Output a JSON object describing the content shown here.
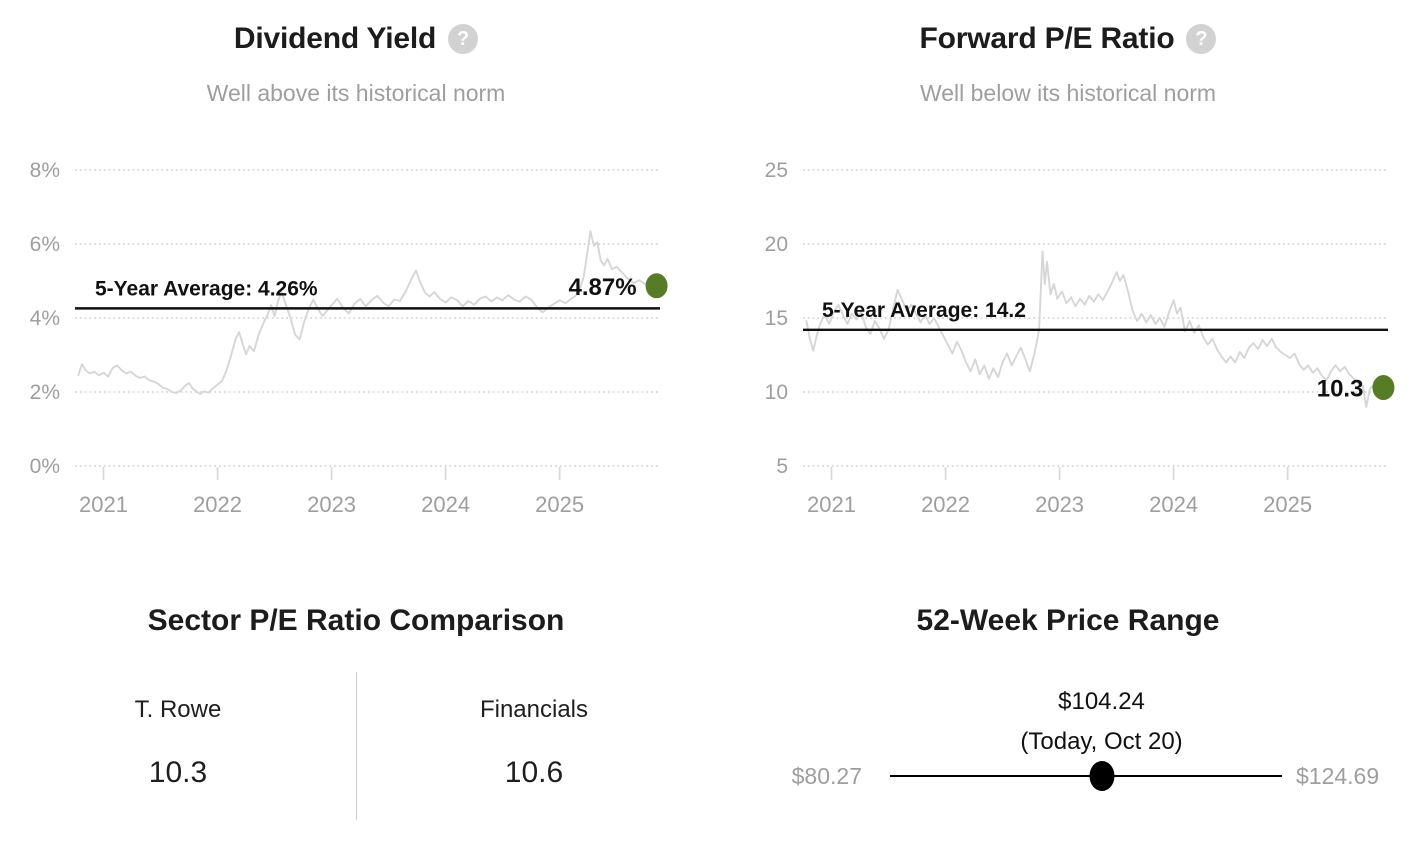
{
  "help_glyph": "?",
  "colors": {
    "accent_green": "#567c26",
    "text_dark": "#1c1c1c",
    "text_muted": "#9e9e9e",
    "grid": "#d8d8d8",
    "series_line": "#d6d6d6",
    "average_line": "#111111",
    "slider_black": "#000000"
  },
  "chart_data": [
    {
      "type": "line",
      "title": "Dividend Yield",
      "subtitle": "Well above its historical norm",
      "average": {
        "label": "5-Year Average: 4.26%",
        "value": 4.26
      },
      "current": {
        "label": "4.87%",
        "value": 4.87
      },
      "y_min": 0,
      "y_max": 8,
      "x_min": 2020.75,
      "x_max": 2025.88,
      "grid": "dotted",
      "y_ticks": [
        {
          "value": 8,
          "label": "8%"
        },
        {
          "value": 6,
          "label": "6%"
        },
        {
          "value": 4,
          "label": "4%"
        },
        {
          "value": 2,
          "label": "2%"
        },
        {
          "value": 0,
          "label": "0%"
        }
      ],
      "x_ticks": [
        {
          "value": 2021,
          "label": "2021"
        },
        {
          "value": 2022,
          "label": "2022"
        },
        {
          "value": 2023,
          "label": "2023"
        },
        {
          "value": 2024,
          "label": "2024"
        },
        {
          "value": 2025,
          "label": "2025"
        }
      ],
      "points": [
        [
          2020.78,
          2.45
        ],
        [
          2020.81,
          2.75
        ],
        [
          2020.84,
          2.6
        ],
        [
          2020.88,
          2.5
        ],
        [
          2020.92,
          2.55
        ],
        [
          2020.96,
          2.45
        ],
        [
          2021.0,
          2.52
        ],
        [
          2021.04,
          2.42
        ],
        [
          2021.08,
          2.65
        ],
        [
          2021.12,
          2.72
        ],
        [
          2021.16,
          2.58
        ],
        [
          2021.2,
          2.5
        ],
        [
          2021.24,
          2.55
        ],
        [
          2021.28,
          2.44
        ],
        [
          2021.32,
          2.38
        ],
        [
          2021.36,
          2.42
        ],
        [
          2021.4,
          2.32
        ],
        [
          2021.44,
          2.28
        ],
        [
          2021.48,
          2.22
        ],
        [
          2021.52,
          2.12
        ],
        [
          2021.56,
          2.08
        ],
        [
          2021.6,
          2.0
        ],
        [
          2021.64,
          1.97
        ],
        [
          2021.68,
          2.05
        ],
        [
          2021.72,
          2.18
        ],
        [
          2021.75,
          2.24
        ],
        [
          2021.78,
          2.1
        ],
        [
          2021.82,
          2.0
        ],
        [
          2021.85,
          1.95
        ],
        [
          2021.88,
          2.02
        ],
        [
          2021.92,
          1.98
        ],
        [
          2021.96,
          2.1
        ],
        [
          2022.0,
          2.2
        ],
        [
          2022.04,
          2.3
        ],
        [
          2022.08,
          2.6
        ],
        [
          2022.12,
          3.0
        ],
        [
          2022.16,
          3.45
        ],
        [
          2022.19,
          3.62
        ],
        [
          2022.22,
          3.3
        ],
        [
          2022.25,
          3.02
        ],
        [
          2022.28,
          3.25
        ],
        [
          2022.32,
          3.1
        ],
        [
          2022.36,
          3.55
        ],
        [
          2022.4,
          3.85
        ],
        [
          2022.44,
          4.1
        ],
        [
          2022.47,
          4.35
        ],
        [
          2022.5,
          4.05
        ],
        [
          2022.53,
          4.45
        ],
        [
          2022.56,
          4.72
        ],
        [
          2022.6,
          4.35
        ],
        [
          2022.64,
          4.0
        ],
        [
          2022.68,
          3.55
        ],
        [
          2022.72,
          3.42
        ],
        [
          2022.76,
          3.9
        ],
        [
          2022.8,
          4.25
        ],
        [
          2022.84,
          4.5
        ],
        [
          2022.88,
          4.25
        ],
        [
          2022.92,
          4.05
        ],
        [
          2022.96,
          4.2
        ],
        [
          2023.0,
          4.35
        ],
        [
          2023.05,
          4.52
        ],
        [
          2023.1,
          4.28
        ],
        [
          2023.15,
          4.12
        ],
        [
          2023.2,
          4.38
        ],
        [
          2023.25,
          4.52
        ],
        [
          2023.3,
          4.32
        ],
        [
          2023.35,
          4.48
        ],
        [
          2023.4,
          4.6
        ],
        [
          2023.45,
          4.42
        ],
        [
          2023.5,
          4.32
        ],
        [
          2023.55,
          4.5
        ],
        [
          2023.6,
          4.46
        ],
        [
          2023.65,
          4.72
        ],
        [
          2023.7,
          5.05
        ],
        [
          2023.74,
          5.28
        ],
        [
          2023.78,
          4.95
        ],
        [
          2023.82,
          4.68
        ],
        [
          2023.86,
          4.58
        ],
        [
          2023.9,
          4.7
        ],
        [
          2023.95,
          4.52
        ],
        [
          2024.0,
          4.42
        ],
        [
          2024.05,
          4.56
        ],
        [
          2024.1,
          4.48
        ],
        [
          2024.15,
          4.32
        ],
        [
          2024.2,
          4.46
        ],
        [
          2024.25,
          4.36
        ],
        [
          2024.3,
          4.52
        ],
        [
          2024.35,
          4.58
        ],
        [
          2024.4,
          4.45
        ],
        [
          2024.45,
          4.55
        ],
        [
          2024.5,
          4.48
        ],
        [
          2024.55,
          4.62
        ],
        [
          2024.6,
          4.5
        ],
        [
          2024.65,
          4.44
        ],
        [
          2024.7,
          4.58
        ],
        [
          2024.75,
          4.5
        ],
        [
          2024.8,
          4.3
        ],
        [
          2024.85,
          4.15
        ],
        [
          2024.9,
          4.28
        ],
        [
          2024.95,
          4.38
        ],
        [
          2025.0,
          4.48
        ],
        [
          2025.05,
          4.4
        ],
        [
          2025.1,
          4.52
        ],
        [
          2025.14,
          4.6
        ],
        [
          2025.18,
          4.82
        ],
        [
          2025.21,
          5.1
        ],
        [
          2025.24,
          5.7
        ],
        [
          2025.27,
          6.35
        ],
        [
          2025.3,
          5.95
        ],
        [
          2025.33,
          6.05
        ],
        [
          2025.36,
          5.55
        ],
        [
          2025.39,
          5.42
        ],
        [
          2025.42,
          5.6
        ],
        [
          2025.46,
          5.32
        ],
        [
          2025.5,
          5.38
        ],
        [
          2025.55,
          5.22
        ],
        [
          2025.6,
          5.05
        ],
        [
          2025.65,
          4.95
        ],
        [
          2025.7,
          5.02
        ],
        [
          2025.75,
          4.92
        ],
        [
          2025.8,
          4.96
        ],
        [
          2025.85,
          4.87
        ]
      ]
    },
    {
      "type": "line",
      "title": "Forward P/E Ratio",
      "subtitle": "Well below its historical norm",
      "average": {
        "label": "5-Year Average: 14.2",
        "value": 14.2
      },
      "current": {
        "label": "10.3",
        "value": 10.3
      },
      "y_min": 5,
      "y_max": 25,
      "x_min": 2020.75,
      "x_max": 2025.88,
      "grid": "dotted",
      "y_ticks": [
        {
          "value": 25,
          "label": "25"
        },
        {
          "value": 20,
          "label": "20"
        },
        {
          "value": 15,
          "label": "15"
        },
        {
          "value": 10,
          "label": "10"
        },
        {
          "value": 5,
          "label": "5"
        }
      ],
      "x_ticks": [
        {
          "value": 2021,
          "label": "2021"
        },
        {
          "value": 2022,
          "label": "2022"
        },
        {
          "value": 2023,
          "label": "2023"
        },
        {
          "value": 2024,
          "label": "2024"
        },
        {
          "value": 2025,
          "label": "2025"
        }
      ],
      "points": [
        [
          2020.78,
          14.8
        ],
        [
          2020.81,
          13.6
        ],
        [
          2020.84,
          12.8
        ],
        [
          2020.87,
          13.8
        ],
        [
          2020.9,
          14.6
        ],
        [
          2020.94,
          15.2
        ],
        [
          2020.98,
          14.6
        ],
        [
          2021.02,
          15.4
        ],
        [
          2021.06,
          15.9
        ],
        [
          2021.1,
          15.2
        ],
        [
          2021.14,
          14.6
        ],
        [
          2021.18,
          15.3
        ],
        [
          2021.22,
          14.9
        ],
        [
          2021.26,
          15.4
        ],
        [
          2021.3,
          14.4
        ],
        [
          2021.34,
          13.9
        ],
        [
          2021.38,
          14.8
        ],
        [
          2021.42,
          14.3
        ],
        [
          2021.46,
          13.6
        ],
        [
          2021.5,
          14.2
        ],
        [
          2021.54,
          15.6
        ],
        [
          2021.58,
          16.9
        ],
        [
          2021.62,
          16.2
        ],
        [
          2021.66,
          15.5
        ],
        [
          2021.7,
          15.9
        ],
        [
          2021.74,
          15.3
        ],
        [
          2021.78,
          14.7
        ],
        [
          2021.82,
          15.2
        ],
        [
          2021.86,
          14.6
        ],
        [
          2021.9,
          15.0
        ],
        [
          2021.94,
          14.4
        ],
        [
          2021.98,
          13.8
        ],
        [
          2022.02,
          13.2
        ],
        [
          2022.06,
          12.6
        ],
        [
          2022.1,
          13.4
        ],
        [
          2022.14,
          12.8
        ],
        [
          2022.18,
          12.0
        ],
        [
          2022.22,
          11.4
        ],
        [
          2022.26,
          12.2
        ],
        [
          2022.3,
          11.2
        ],
        [
          2022.34,
          11.8
        ],
        [
          2022.38,
          10.9
        ],
        [
          2022.42,
          11.6
        ],
        [
          2022.46,
          11.0
        ],
        [
          2022.5,
          12.0
        ],
        [
          2022.54,
          12.6
        ],
        [
          2022.58,
          11.8
        ],
        [
          2022.62,
          12.4
        ],
        [
          2022.66,
          13.0
        ],
        [
          2022.7,
          12.2
        ],
        [
          2022.74,
          11.4
        ],
        [
          2022.78,
          12.6
        ],
        [
          2022.82,
          14.2
        ],
        [
          2022.85,
          19.5
        ],
        [
          2022.87,
          17.3
        ],
        [
          2022.89,
          18.8
        ],
        [
          2022.92,
          16.6
        ],
        [
          2022.95,
          17.3
        ],
        [
          2022.98,
          16.3
        ],
        [
          2023.02,
          16.8
        ],
        [
          2023.06,
          16.0
        ],
        [
          2023.1,
          16.4
        ],
        [
          2023.14,
          15.8
        ],
        [
          2023.18,
          16.3
        ],
        [
          2023.22,
          15.9
        ],
        [
          2023.26,
          16.5
        ],
        [
          2023.3,
          16.1
        ],
        [
          2023.34,
          16.6
        ],
        [
          2023.38,
          16.2
        ],
        [
          2023.42,
          16.8
        ],
        [
          2023.46,
          17.4
        ],
        [
          2023.5,
          18.1
        ],
        [
          2023.53,
          17.5
        ],
        [
          2023.56,
          17.9
        ],
        [
          2023.6,
          16.8
        ],
        [
          2023.64,
          15.5
        ],
        [
          2023.68,
          14.8
        ],
        [
          2023.72,
          15.3
        ],
        [
          2023.76,
          14.7
        ],
        [
          2023.8,
          15.2
        ],
        [
          2023.84,
          14.6
        ],
        [
          2023.88,
          15.0
        ],
        [
          2023.92,
          14.4
        ],
        [
          2023.96,
          15.4
        ],
        [
          2024.0,
          16.2
        ],
        [
          2024.03,
          15.3
        ],
        [
          2024.06,
          15.7
        ],
        [
          2024.1,
          14.1
        ],
        [
          2024.14,
          14.8
        ],
        [
          2024.18,
          14.0
        ],
        [
          2024.22,
          14.5
        ],
        [
          2024.26,
          13.7
        ],
        [
          2024.3,
          13.2
        ],
        [
          2024.34,
          13.6
        ],
        [
          2024.38,
          12.9
        ],
        [
          2024.42,
          12.4
        ],
        [
          2024.46,
          12.0
        ],
        [
          2024.5,
          12.4
        ],
        [
          2024.54,
          12.0
        ],
        [
          2024.58,
          12.7
        ],
        [
          2024.62,
          12.3
        ],
        [
          2024.66,
          13.0
        ],
        [
          2024.7,
          13.3
        ],
        [
          2024.74,
          12.9
        ],
        [
          2024.78,
          13.5
        ],
        [
          2024.82,
          13.1
        ],
        [
          2024.86,
          13.6
        ],
        [
          2024.9,
          13.0
        ],
        [
          2024.94,
          12.7
        ],
        [
          2024.98,
          12.5
        ],
        [
          2025.02,
          12.3
        ],
        [
          2025.06,
          12.6
        ],
        [
          2025.1,
          11.9
        ],
        [
          2025.14,
          11.5
        ],
        [
          2025.18,
          11.8
        ],
        [
          2025.22,
          11.3
        ],
        [
          2025.26,
          11.6
        ],
        [
          2025.3,
          11.1
        ],
        [
          2025.34,
          10.8
        ],
        [
          2025.38,
          11.4
        ],
        [
          2025.42,
          11.8
        ],
        [
          2025.46,
          11.4
        ],
        [
          2025.5,
          11.7
        ],
        [
          2025.54,
          11.2
        ],
        [
          2025.58,
          10.9
        ],
        [
          2025.62,
          10.6
        ],
        [
          2025.66,
          10.4
        ],
        [
          2025.69,
          9.0
        ],
        [
          2025.72,
          10.2
        ],
        [
          2025.76,
          10.5
        ],
        [
          2025.8,
          10.15
        ],
        [
          2025.84,
          10.3
        ]
      ]
    },
    {
      "type": "table",
      "title": "Sector P/E Ratio Comparison",
      "columns": [
        {
          "label": "T. Rowe",
          "value": "10.3"
        },
        {
          "label": "Financials",
          "value": "10.6"
        }
      ]
    },
    {
      "type": "range",
      "title": "52-Week Price Range",
      "current_label": "$104.24",
      "current_sub": "(Today, Oct 20)",
      "current_value": 104.24,
      "min_label": "$80.27",
      "min_value": 80.27,
      "max_label": "$124.69",
      "max_value": 124.69
    }
  ]
}
